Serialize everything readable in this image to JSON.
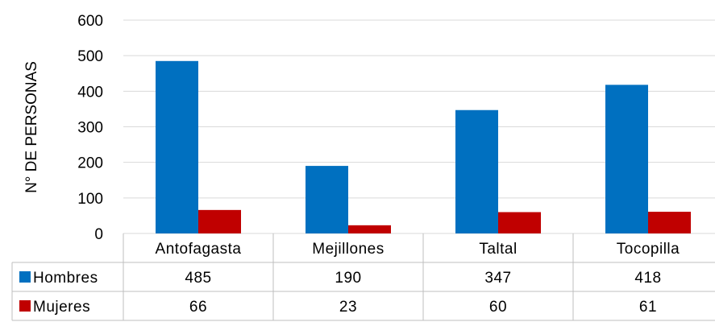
{
  "chart_data": {
    "type": "bar",
    "title": "",
    "xlabel": "",
    "ylabel": "N° DE PERSONAS",
    "ylim": [
      0,
      600
    ],
    "yticks": [
      0,
      100,
      200,
      300,
      400,
      500,
      600
    ],
    "yticks_labels": [
      "0",
      "100",
      "200",
      "300",
      "400",
      "500",
      "600"
    ],
    "grid": true,
    "legend": "data-table",
    "categories": [
      "Antofagasta",
      "Mejillones",
      "Taltal",
      "Tocopilla"
    ],
    "series": [
      {
        "name": "Hombres",
        "color": "#0070C0",
        "values": [
          485,
          190,
          347,
          418
        ],
        "value_labels": [
          "485",
          "190",
          "347",
          "418"
        ]
      },
      {
        "name": "Mujeres",
        "color": "#C00000",
        "values": [
          66,
          23,
          60,
          61
        ],
        "value_labels": [
          "66",
          "23",
          "60",
          "61"
        ]
      }
    ]
  }
}
